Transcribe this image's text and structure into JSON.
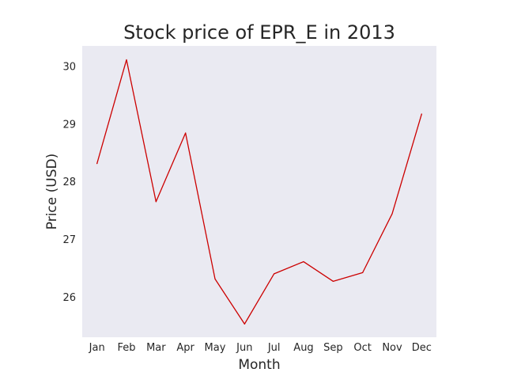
{
  "chart_data": {
    "type": "line",
    "title": "Stock price of EPR_E in 2013",
    "xlabel": "Month",
    "ylabel": "Price (USD)",
    "categories": [
      "Jan",
      "Feb",
      "Mar",
      "Apr",
      "May",
      "Jun",
      "Jul",
      "Aug",
      "Sep",
      "Oct",
      "Nov",
      "Dec"
    ],
    "series": [
      {
        "values": [
          28.31,
          30.11,
          27.65,
          28.84,
          26.31,
          25.53,
          26.4,
          26.61,
          26.27,
          26.42,
          27.44,
          29.17
        ],
        "color": "#cc0000"
      }
    ],
    "yticks": [
      26,
      27,
      28,
      29,
      30
    ],
    "ylim": [
      25.3,
      30.35
    ],
    "grid": false,
    "background": "#eaeaf2"
  }
}
